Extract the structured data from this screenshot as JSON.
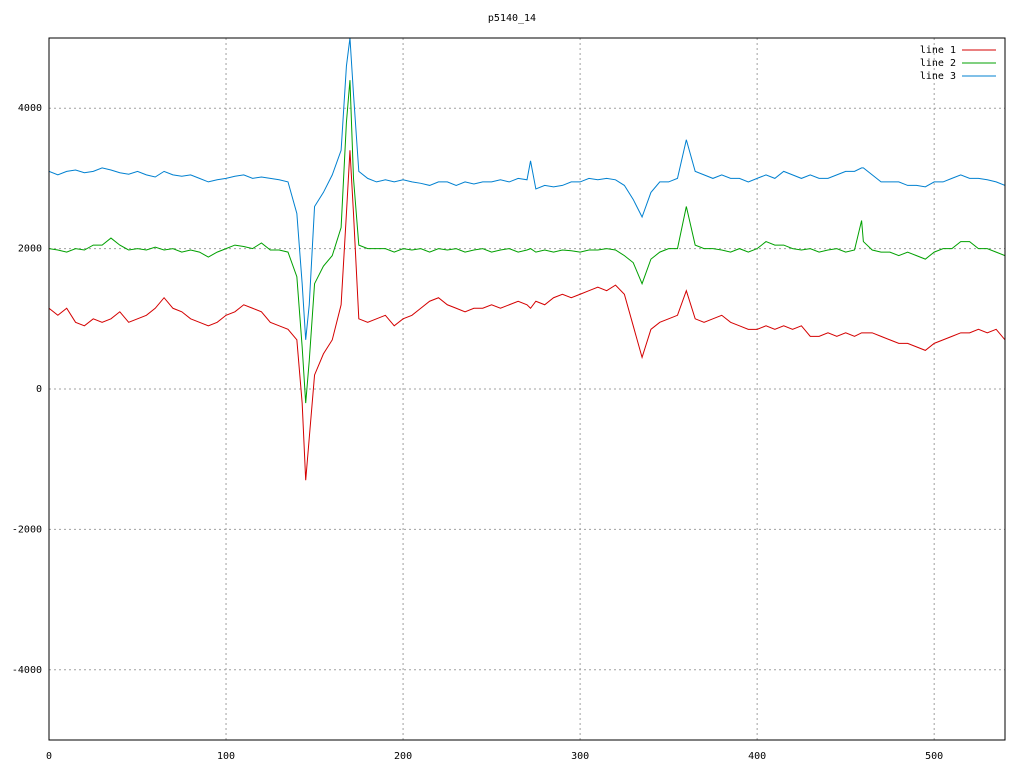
{
  "chart_data": {
    "type": "line",
    "title": "p5140_14",
    "x": [
      0,
      5,
      10,
      15,
      20,
      25,
      30,
      35,
      40,
      45,
      50,
      55,
      60,
      65,
      70,
      75,
      80,
      85,
      90,
      95,
      100,
      105,
      110,
      115,
      120,
      125,
      130,
      135,
      140,
      143,
      145,
      147,
      150,
      155,
      160,
      165,
      168,
      170,
      172,
      175,
      180,
      185,
      190,
      195,
      200,
      205,
      210,
      215,
      220,
      225,
      230,
      235,
      240,
      245,
      250,
      255,
      260,
      265,
      270,
      272,
      275,
      280,
      285,
      290,
      295,
      300,
      305,
      310,
      315,
      320,
      325,
      330,
      335,
      340,
      345,
      350,
      355,
      360,
      365,
      370,
      375,
      380,
      385,
      390,
      395,
      400,
      405,
      410,
      415,
      420,
      425,
      430,
      435,
      440,
      445,
      450,
      455,
      459,
      460,
      465,
      470,
      475,
      480,
      485,
      490,
      495,
      500,
      505,
      510,
      515,
      520,
      525,
      530,
      535,
      540
    ],
    "series": [
      {
        "name": "line 1",
        "color": "#d40000",
        "values": [
          1150,
          1050,
          1150,
          950,
          900,
          1000,
          950,
          1000,
          1100,
          950,
          1000,
          1050,
          1150,
          1300,
          1150,
          1100,
          1000,
          950,
          900,
          950,
          1050,
          1100,
          1200,
          1150,
          1100,
          950,
          900,
          850,
          700,
          -200,
          -1300,
          -700,
          200,
          500,
          700,
          1200,
          2500,
          3400,
          2500,
          1000,
          950,
          1000,
          1050,
          900,
          1000,
          1050,
          1150,
          1250,
          1300,
          1200,
          1150,
          1100,
          1150,
          1150,
          1200,
          1150,
          1200,
          1250,
          1200,
          1150,
          1250,
          1200,
          1300,
          1350,
          1300,
          1350,
          1400,
          1450,
          1400,
          1480,
          1350,
          900,
          450,
          850,
          950,
          1000,
          1050,
          1400,
          1000,
          950,
          1000,
          1050,
          950,
          900,
          850,
          850,
          900,
          850,
          900,
          850,
          900,
          750,
          750,
          800,
          750,
          800,
          750,
          800,
          800,
          800,
          750,
          700,
          650,
          650,
          600,
          550,
          650,
          700,
          750,
          800,
          800,
          850,
          800,
          850,
          700
        ]
      },
      {
        "name": "line 2",
        "color": "#00a000",
        "values": [
          2000,
          1980,
          1950,
          2000,
          1980,
          2050,
          2050,
          2150,
          2050,
          1980,
          2000,
          1980,
          2020,
          1980,
          2000,
          1950,
          1980,
          1950,
          1880,
          1950,
          2000,
          2050,
          2030,
          2000,
          2080,
          1980,
          1980,
          1950,
          1600,
          600,
          -200,
          400,
          1500,
          1750,
          1900,
          2300,
          3800,
          4400,
          3000,
          2050,
          2000,
          2000,
          2000,
          1950,
          2000,
          1980,
          2000,
          1950,
          2000,
          1980,
          2000,
          1950,
          1980,
          2000,
          1950,
          1980,
          2000,
          1950,
          1980,
          2000,
          1950,
          1980,
          1950,
          1980,
          1970,
          1950,
          1980,
          1980,
          2000,
          1980,
          1900,
          1800,
          1500,
          1850,
          1950,
          2000,
          2000,
          2600,
          2050,
          2000,
          2000,
          1980,
          1950,
          2000,
          1950,
          2000,
          2100,
          2050,
          2050,
          2000,
          1980,
          2000,
          1950,
          1980,
          2000,
          1950,
          1980,
          2400,
          2100,
          1980,
          1950,
          1950,
          1900,
          1950,
          1900,
          1850,
          1950,
          2000,
          2000,
          2100,
          2100,
          2000,
          2000,
          1950,
          1900
        ]
      },
      {
        "name": "line 3",
        "color": "#0080d0",
        "values": [
          3100,
          3050,
          3100,
          3120,
          3080,
          3100,
          3150,
          3120,
          3080,
          3060,
          3100,
          3050,
          3020,
          3100,
          3050,
          3030,
          3050,
          3000,
          2950,
          2980,
          3000,
          3030,
          3050,
          3000,
          3020,
          3000,
          2980,
          2950,
          2500,
          1500,
          700,
          1200,
          2600,
          2800,
          3050,
          3400,
          4600,
          5000,
          4200,
          3100,
          3000,
          2950,
          2980,
          2950,
          2980,
          2950,
          2930,
          2900,
          2950,
          2950,
          2900,
          2950,
          2920,
          2950,
          2950,
          2980,
          2950,
          3000,
          2980,
          3250,
          2850,
          2900,
          2880,
          2900,
          2950,
          2950,
          3000,
          2980,
          3000,
          2980,
          2900,
          2700,
          2450,
          2800,
          2950,
          2950,
          3000,
          3550,
          3100,
          3050,
          3000,
          3050,
          3000,
          3000,
          2950,
          3000,
          3050,
          3000,
          3100,
          3050,
          3000,
          3050,
          3000,
          3000,
          3050,
          3100,
          3100,
          3150,
          3150,
          3050,
          2950,
          2950,
          2950,
          2900,
          2900,
          2880,
          2950,
          2950,
          3000,
          3050,
          3000,
          3000,
          2980,
          2950,
          2900
        ]
      }
    ],
    "xlim": [
      0,
      540
    ],
    "ylim": [
      -5000,
      5000
    ],
    "xticks": [
      0,
      100,
      200,
      300,
      400,
      500
    ],
    "yticks": [
      -4000,
      -2000,
      0,
      2000,
      4000
    ],
    "grid": true,
    "legend": "top-right"
  }
}
